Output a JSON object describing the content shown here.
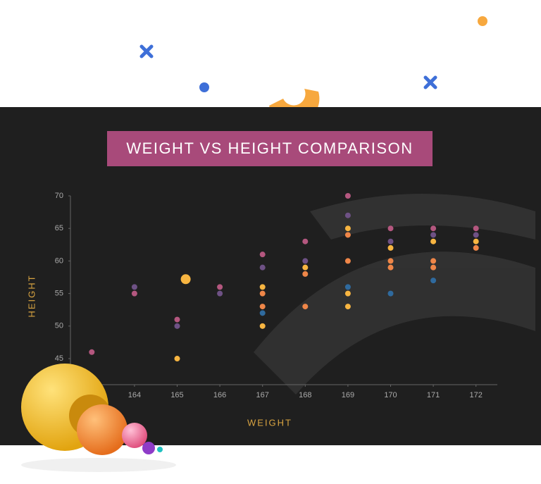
{
  "chart_data": {
    "type": "scatter",
    "title": "WEIGHT VS HEIGHT COMPARISON",
    "x_label": "WEIGHT",
    "y_label": "HEIGHT",
    "xlim": [
      162.5,
      172.5
    ],
    "xticks": [
      164,
      165,
      166,
      167,
      168,
      169,
      170,
      171,
      172
    ],
    "ylim": [
      41,
      70
    ],
    "yticks": [
      45,
      50,
      55,
      60,
      65,
      70
    ],
    "grid": false,
    "series": [
      {
        "color": "#b4577f",
        "x": [
          163,
          164,
          165,
          166,
          167,
          168,
          169,
          170,
          171,
          172
        ],
        "values": [
          46,
          55,
          51,
          56,
          61,
          63,
          70,
          65,
          65,
          65
        ]
      },
      {
        "color": "#6e5185",
        "x": [
          164,
          165,
          166,
          167,
          168,
          169,
          170,
          171,
          172
        ],
        "values": [
          56,
          50,
          55,
          59,
          60,
          67,
          63,
          64,
          64
        ]
      },
      {
        "color": "#f7b541",
        "x": [
          165,
          167,
          167,
          168,
          169,
          169,
          169,
          170,
          171,
          172
        ],
        "values": [
          45,
          56,
          50,
          59,
          65,
          55,
          53,
          62,
          63,
          63
        ]
      },
      {
        "color": "#ef8648",
        "x": [
          167,
          167,
          168,
          168,
          169,
          169,
          170,
          170,
          171,
          171,
          172
        ],
        "values": [
          55,
          53,
          58,
          53,
          64,
          60,
          60,
          59,
          60,
          59,
          62
        ]
      },
      {
        "color": "#2f6a9e",
        "x": [
          167,
          169,
          170,
          171
        ],
        "values": [
          52,
          56,
          55,
          57
        ]
      },
      {
        "color": "#f7b541",
        "x": [
          165.2
        ],
        "values": [
          57.2
        ],
        "size": 7
      }
    ]
  }
}
